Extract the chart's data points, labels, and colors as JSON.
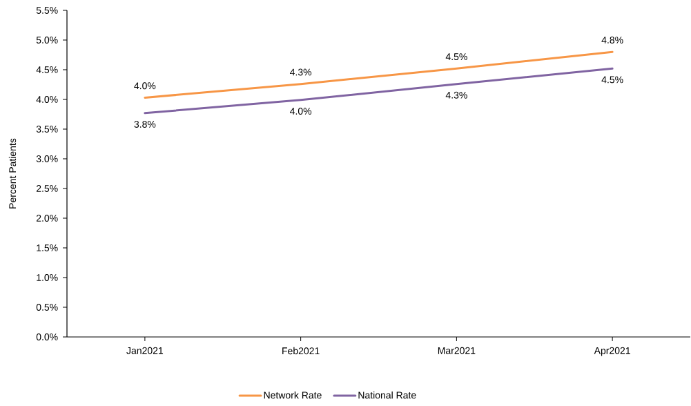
{
  "chart_data": {
    "type": "line",
    "ylabel": "Percent Patients",
    "categories": [
      "Jan2021",
      "Feb2021",
      "Mar2021",
      "Apr2021"
    ],
    "series": [
      {
        "name": "Network Rate",
        "color": "#f79646",
        "values": [
          4.03,
          4.26,
          4.52,
          4.8
        ],
        "value_labels": [
          "4.0%",
          "4.3%",
          "4.5%",
          "4.8%"
        ]
      },
      {
        "name": "National Rate",
        "color": "#8064a2",
        "values": [
          3.77,
          3.99,
          4.26,
          4.52
        ],
        "value_labels": [
          "3.8%",
          "4.0%",
          "4.3%",
          "4.5%"
        ]
      }
    ],
    "ylim": [
      0,
      5.5
    ],
    "yticks": [
      {
        "value": 0,
        "label": "0.0%"
      },
      {
        "value": 0.5,
        "label": "0.5%"
      },
      {
        "value": 1,
        "label": "1.0%"
      },
      {
        "value": 1.5,
        "label": "1.5%"
      },
      {
        "value": 2,
        "label": "2.0%"
      },
      {
        "value": 2.5,
        "label": "2.5%"
      },
      {
        "value": 3,
        "label": "3.0%"
      },
      {
        "value": 3.5,
        "label": "3.5%"
      },
      {
        "value": 4,
        "label": "4.0%"
      },
      {
        "value": 4.5,
        "label": "4.5%"
      },
      {
        "value": 5,
        "label": "5.0%"
      },
      {
        "value": 5.5,
        "label": "5.5%"
      }
    ],
    "legend": "bottom"
  }
}
